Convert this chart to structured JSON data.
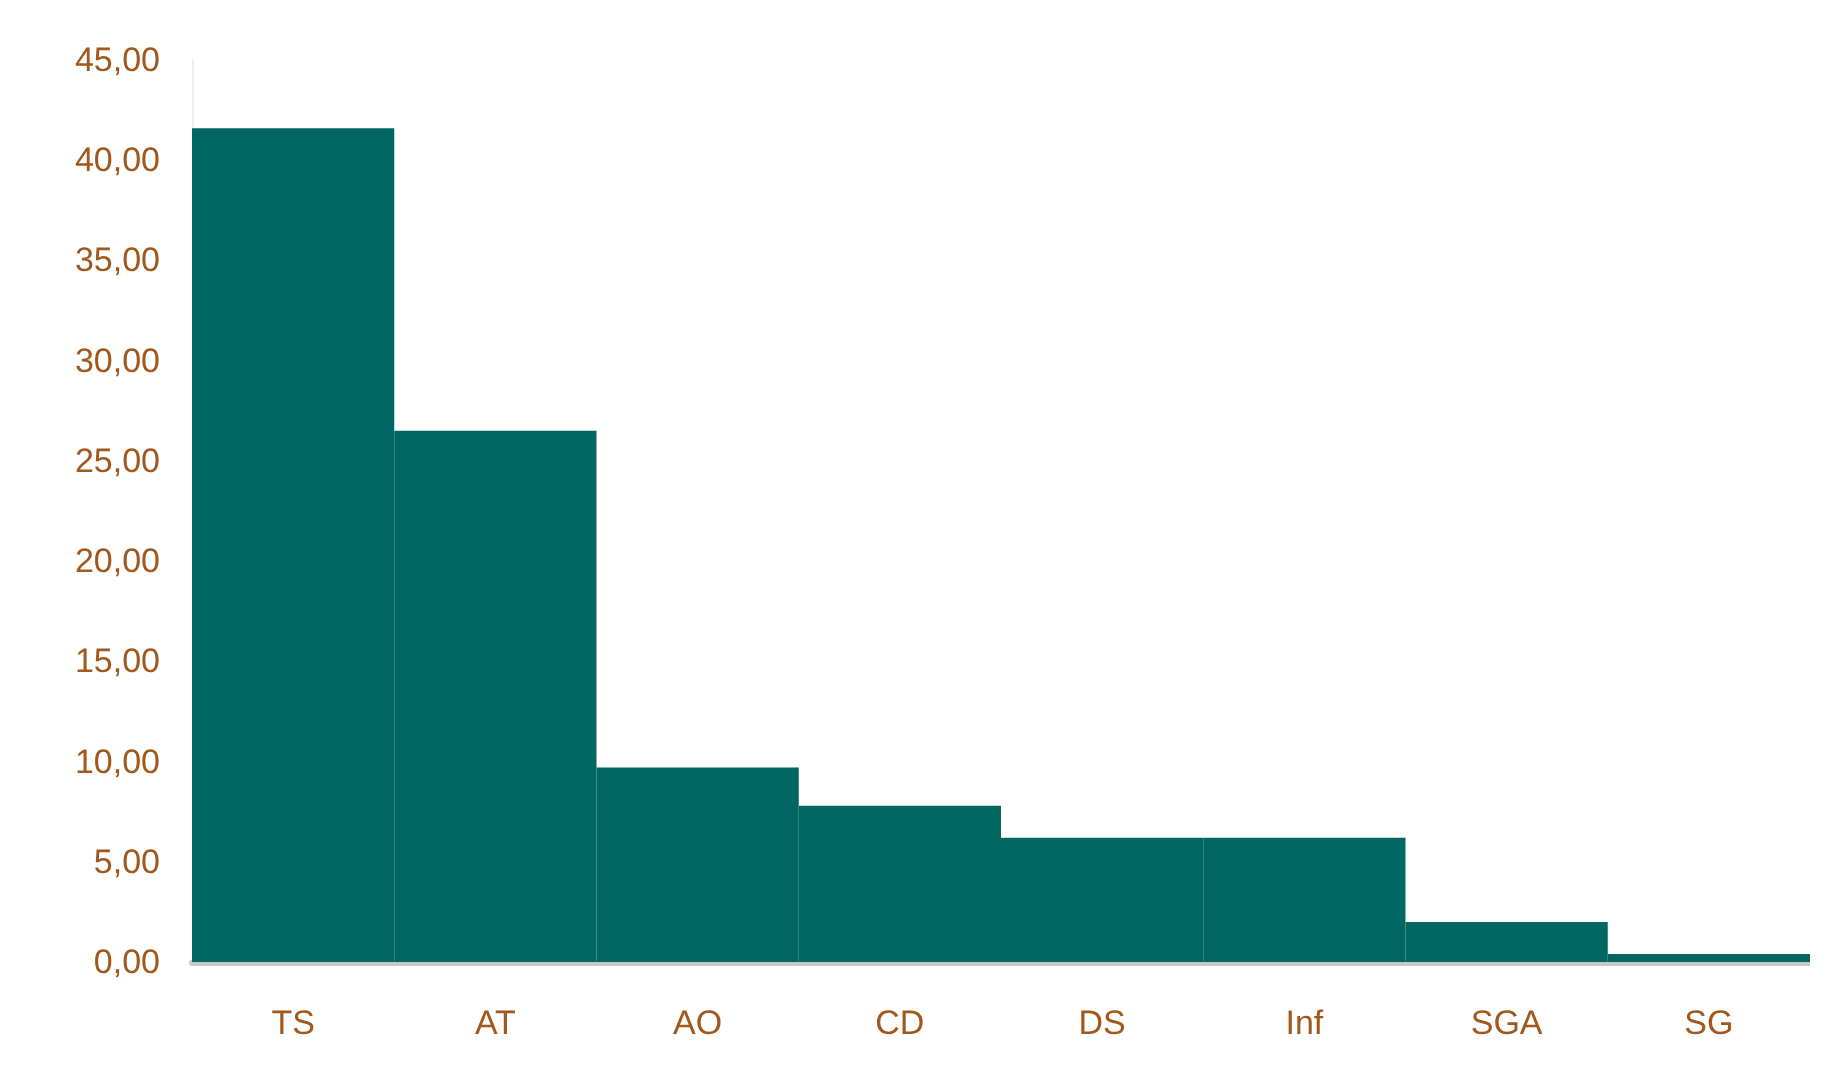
{
  "chart_data": {
    "type": "bar",
    "categories": [
      "TS",
      "AT",
      "AO",
      "CD",
      "DS",
      "Inf",
      "SGA",
      "SG"
    ],
    "values": [
      41.6,
      26.5,
      9.7,
      7.8,
      6.2,
      6.2,
      2.0,
      0.4
    ],
    "color": "#026663",
    "ylim": [
      0,
      45
    ],
    "yticks": [
      {
        "value": 0,
        "label": "0,00"
      },
      {
        "value": 5,
        "label": "5,00"
      },
      {
        "value": 10,
        "label": "10,00"
      },
      {
        "value": 15,
        "label": "15,00"
      },
      {
        "value": 20,
        "label": "20,00"
      },
      {
        "value": 25,
        "label": "25,00"
      },
      {
        "value": 30,
        "label": "30,00"
      },
      {
        "value": 35,
        "label": "35,00"
      },
      {
        "value": 40,
        "label": "40,00"
      },
      {
        "value": 45,
        "label": "45,00"
      }
    ],
    "grid": false
  }
}
